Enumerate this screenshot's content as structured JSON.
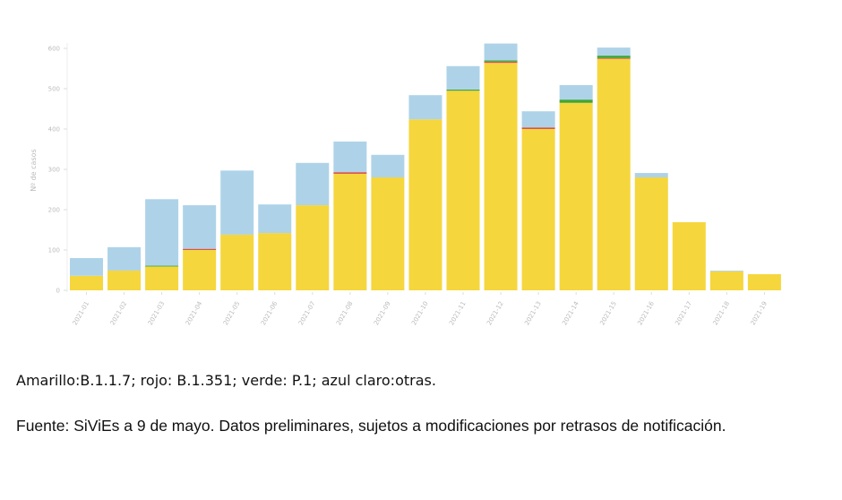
{
  "chart_data": {
    "type": "bar",
    "stacked": true,
    "title": "",
    "xlabel": "",
    "ylabel": "Nº de casos",
    "ylim": [
      0,
      600
    ],
    "yticks": [
      0,
      100,
      200,
      300,
      400,
      500,
      600
    ],
    "grid": false,
    "legend_position": "caption below chart",
    "categories": [
      "2021-01",
      "2021-02",
      "2021-03",
      "2021-04",
      "2021-05",
      "2021-06",
      "2021-07",
      "2021-08",
      "2021-09",
      "2021-10",
      "2021-11",
      "2021-12",
      "2021-13",
      "2021-14",
      "2021-15",
      "2021-16",
      "2021-17",
      "2021-18",
      "2021-19"
    ],
    "series": [
      {
        "name": "B.1.1.7",
        "color": "#f5d63d",
        "values": [
          36,
          49,
          59,
          100,
          138,
          142,
          211,
          289,
          280,
          424,
          495,
          564,
          400,
          465,
          574,
          280,
          169,
          47,
          40
        ]
      },
      {
        "name": "B.1.351",
        "color": "#d9534f",
        "values": [
          0,
          0,
          0,
          3,
          0,
          0,
          0,
          4,
          0,
          0,
          0,
          3,
          4,
          0,
          2,
          0,
          0,
          0,
          0
        ]
      },
      {
        "name": "P.1",
        "color": "#3fa535",
        "values": [
          0,
          0,
          2,
          0,
          0,
          0,
          0,
          0,
          0,
          0,
          3,
          3,
          0,
          8,
          6,
          0,
          0,
          0,
          0
        ]
      },
      {
        "name": "otras",
        "color": "#aed3e8",
        "values": [
          44,
          58,
          165,
          108,
          159,
          71,
          105,
          76,
          56,
          60,
          58,
          42,
          40,
          36,
          20,
          11,
          0,
          2,
          0
        ]
      }
    ]
  },
  "captions": {
    "legend": "Amarillo:B.1.1.7; rojo: B.1.351; verde: P.1; azul claro:otras.",
    "source": "Fuente: SiViEs a 9 de mayo. Datos preliminares, sujetos a modificaciones por retrasos de notificación."
  }
}
